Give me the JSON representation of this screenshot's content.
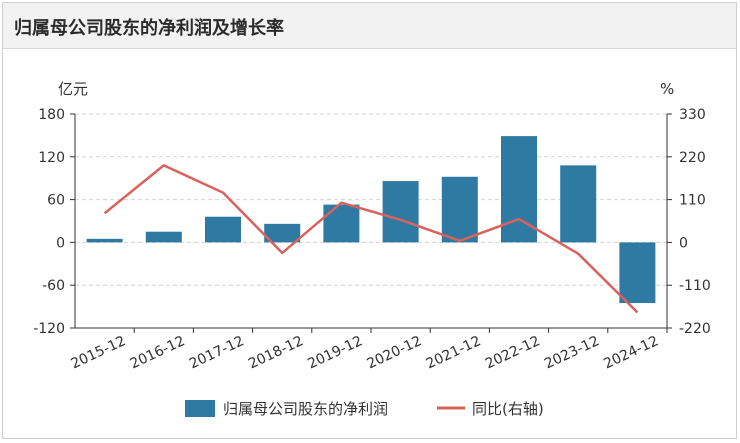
{
  "title": "归属母公司股东的净利润及增长率",
  "chart_data": {
    "type": "bar",
    "categories": [
      "2015-12",
      "2016-12",
      "2017-12",
      "2018-12",
      "2019-12",
      "2020-12",
      "2021-12",
      "2022-12",
      "2023-12",
      "2024-12"
    ],
    "series": [
      {
        "name": "归属母公司股东的净利润",
        "type": "bar",
        "axis": "left",
        "color": "#2f7aa3",
        "values": [
          5,
          15,
          36,
          26,
          53,
          86,
          92,
          149,
          108,
          -85
        ]
      },
      {
        "name": "同比(右轴)",
        "type": "line",
        "axis": "right",
        "color": "#d9625c",
        "values": [
          75,
          198,
          128,
          -27,
          102,
          58,
          4,
          60,
          -29,
          -180
        ]
      }
    ],
    "left_axis": {
      "unit": "亿元",
      "ylim": [
        -120,
        180
      ],
      "ticks": [
        180,
        120,
        60,
        0,
        -60,
        -120
      ]
    },
    "right_axis": {
      "unit": "%",
      "ylim": [
        -220,
        330
      ],
      "ticks": [
        330,
        220,
        110,
        0,
        -110,
        -220
      ]
    },
    "grid": true,
    "legend": "bottom"
  }
}
